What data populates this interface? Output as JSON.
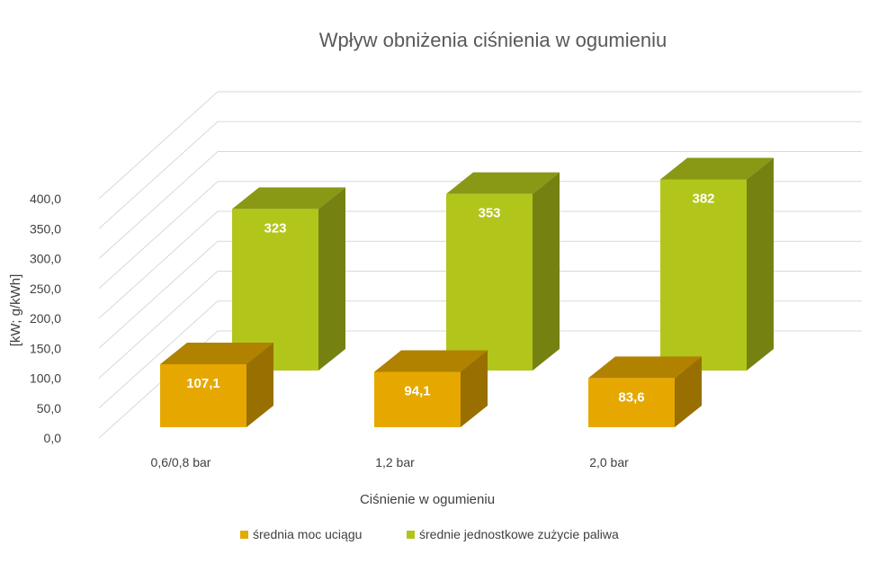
{
  "chart_data": {
    "type": "bar",
    "title": "Wpływ obniżenia ciśnienia w ogumieniu",
    "xlabel": "Ciśnienie w ogumieniu",
    "ylabel": "[kW; g/kWh]",
    "categories": [
      "0,6/0,8 bar",
      "1,2 bar",
      "2,0 bar"
    ],
    "ylim": [
      0,
      400
    ],
    "yticks": [
      "0,0",
      "50,0",
      "100,0",
      "150,0",
      "200,0",
      "250,0",
      "300,0",
      "350,0",
      "400,0"
    ],
    "grid": true,
    "legend_position": "bottom",
    "series": [
      {
        "name": "średnia moc uciągu",
        "values": [
          107.1,
          94.1,
          83.6
        ],
        "labels": [
          "107,1",
          "94,1",
          "83,6"
        ],
        "color": "#E6A800"
      },
      {
        "name": "średnie jednostkowe zużycie paliwa",
        "values": [
          323,
          353,
          382
        ],
        "labels": [
          "323",
          "353",
          "382"
        ],
        "color": "#B2C51B"
      }
    ]
  }
}
